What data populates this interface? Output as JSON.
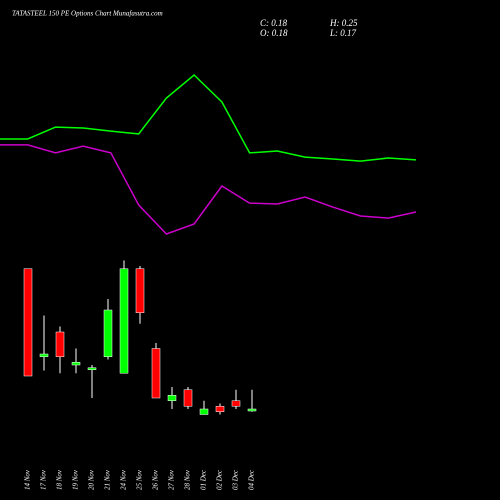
{
  "chart_data": [
    {
      "type": "line",
      "series": [
        {
          "name": "green line",
          "color": "#00ff00",
          "values": [
            58.4,
            58.4,
            64.7,
            64.2,
            62.6,
            61.1,
            80,
            92.1,
            77.9,
            51.1,
            52.1,
            48.9,
            47.9,
            46.8,
            48.4,
            47.4
          ]
        },
        {
          "name": "purple line",
          "color": "#cc00cc",
          "values": [
            55.3,
            55.3,
            51.1,
            54.7,
            51.1,
            23.7,
            8.4,
            13.7,
            33.7,
            24.7,
            24.2,
            27.9,
            22.6,
            17.9,
            16.8,
            20
          ]
        }
      ],
      "ylim": [
        0,
        100
      ]
    },
    {
      "type": "candlestick",
      "title": "TATASTEEL 150 PE Options Chart Munafasutra.com",
      "stats": [
        "C: 0.18",
        "H: 0.25",
        "O: 0.18",
        "L: 0.17"
      ],
      "categories": [
        "14 Nov",
        "17 Nov",
        "18 Nov",
        "19 Nov",
        "20 Nov",
        "21 Nov",
        "24 Nov",
        "25 Nov",
        "26 Nov",
        "27 Nov",
        "28 Nov",
        "01 Dec",
        "02 Dec",
        "03 Dec",
        "04 Dec"
      ],
      "open": [
        0.69,
        0.37,
        0.46,
        0.34,
        0.33,
        0.37,
        0.31,
        0.69,
        0.4,
        0.21,
        0.25,
        0.16,
        0.19,
        0.21,
        0.18
      ],
      "high": [
        0.69,
        0.52,
        0.48,
        0.4,
        0.34,
        0.58,
        0.72,
        0.7,
        0.42,
        0.26,
        0.26,
        0.21,
        0.2,
        0.25,
        0.25
      ],
      "low": [
        0.3,
        0.32,
        0.31,
        0.31,
        0.22,
        0.36,
        0.31,
        0.49,
        0.22,
        0.18,
        0.18,
        0.16,
        0.16,
        0.18,
        0.17
      ],
      "close": [
        0.3,
        0.38,
        0.37,
        0.35,
        0.33,
        0.54,
        0.69,
        0.53,
        0.22,
        0.23,
        0.19,
        0.18,
        0.17,
        0.19,
        0.18
      ],
      "up_color": "#00ff00",
      "down_color": "#ff0000",
      "ylim": [
        0.14,
        0.74
      ]
    }
  ]
}
